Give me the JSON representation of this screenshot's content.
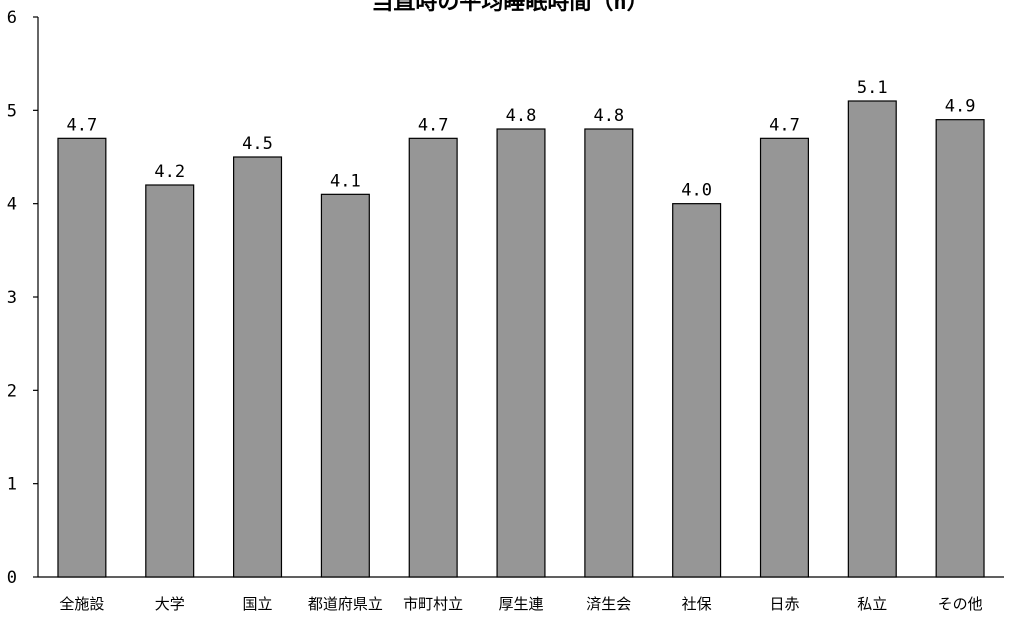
{
  "chart_data": {
    "type": "bar",
    "title": "当直時の平均睡眠時間（h）",
    "xlabel": "",
    "ylabel": "",
    "categories": [
      "全施設",
      "大学",
      "国立",
      "都道府県立",
      "市町村立",
      "厚生連",
      "済生会",
      "社保",
      "日赤",
      "私立",
      "その他"
    ],
    "values": [
      4.7,
      4.2,
      4.5,
      4.1,
      4.7,
      4.8,
      4.8,
      4.0,
      4.7,
      5.1,
      4.9
    ],
    "value_labels": [
      "4.7",
      "4.2",
      "4.5",
      "4.1",
      "4.7",
      "4.8",
      "4.8",
      "4.0",
      "4.7",
      "5.1",
      "4.9"
    ],
    "ylim": [
      0,
      6
    ],
    "yticks": [
      "0",
      "1",
      "2",
      "3",
      "4",
      "5",
      "6"
    ],
    "grid": false,
    "legend": "none",
    "colors": {
      "bar_fill": "#969696",
      "bar_stroke": "#000000",
      "axis": "#000000",
      "background": "#ffffff"
    }
  }
}
